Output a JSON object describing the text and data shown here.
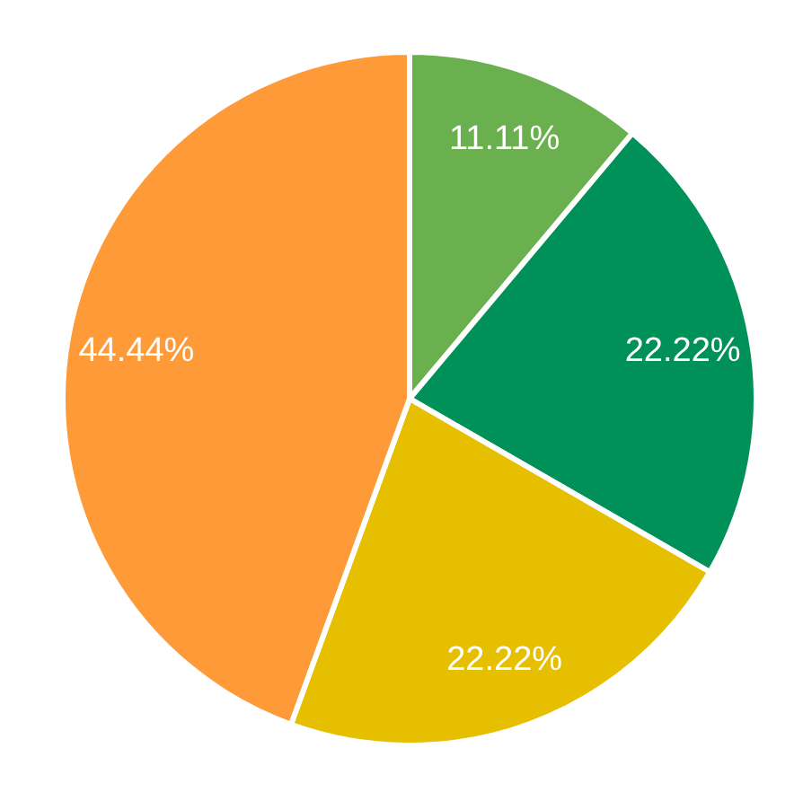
{
  "chart_data": {
    "type": "pie",
    "categories": [
      null,
      null,
      null,
      null
    ],
    "values": [
      11.11,
      22.22,
      22.22,
      44.44
    ],
    "value_labels": [
      "11.11%",
      "22.22%",
      "22.22%",
      "44.44%"
    ],
    "colors": [
      "#6ab04e",
      "#009159",
      "#e5bf00",
      "#ff9a38"
    ]
  }
}
